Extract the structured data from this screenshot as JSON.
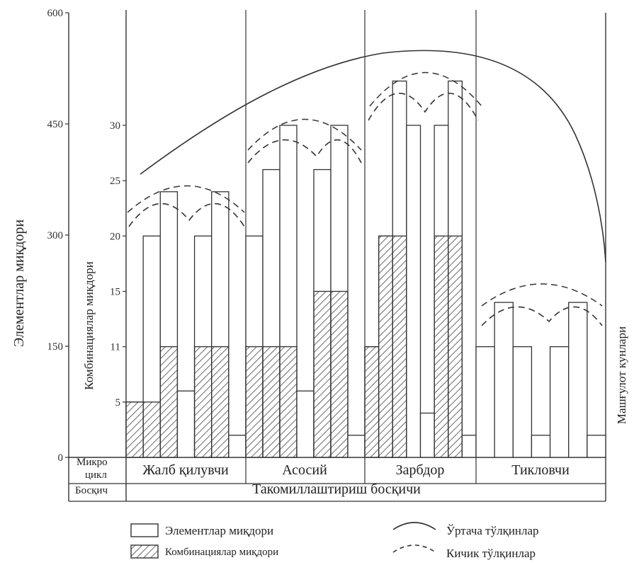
{
  "chart_data": {
    "type": "bar",
    "left_axis": {
      "label": "Элементлар миқдори",
      "ticks": [
        "600",
        "450",
        "300",
        "150",
        "0"
      ],
      "ylim": [
        0,
        600
      ]
    },
    "inner_axis": {
      "label": "Комбинациялар миқдори",
      "ticks": [
        "30",
        "25",
        "20",
        "15",
        "1​1",
        "5"
      ],
      "ylim": [
        0,
        30
      ]
    },
    "right_axis": {
      "label": "Машғулот кунлари"
    },
    "row_labels": {
      "microcycle": [
        "Микро",
        "цикл"
      ],
      "stage": "Босқич"
    },
    "stage_name": "Такомиллаштириш босқичи",
    "phases": [
      {
        "name": "Жалб қилувчи",
        "elements": [
          5,
          20,
          24,
          6,
          20,
          24,
          2
        ],
        "combinations": [
          5,
          5,
          10,
          0,
          10,
          10,
          0
        ]
      },
      {
        "name": "Асосий",
        "elements": [
          20,
          26,
          30,
          6,
          26,
          30,
          2
        ],
        "combinations": [
          10,
          10,
          10,
          0,
          15,
          15,
          0
        ]
      },
      {
        "name": "Зарбдор",
        "elements": [
          10,
          20,
          34,
          30,
          4,
          30,
          34,
          2
        ],
        "combinations": [
          10,
          20,
          20,
          0,
          0,
          20,
          20,
          0
        ]
      },
      {
        "name": "Тикловчи",
        "elements": [
          10,
          14,
          10,
          2,
          10,
          14,
          2
        ],
        "combinations": [
          0,
          0,
          0,
          0,
          0,
          0,
          0
        ]
      }
    ],
    "legend": [
      {
        "label": "Элементлар миқдори",
        "kind": "bar-plain"
      },
      {
        "label": "Комбинациялар миқдори",
        "kind": "bar-hatched"
      },
      {
        "label": "Ўртача тўлқинлар",
        "kind": "solid-arc"
      },
      {
        "label": "Кичик тўлқинлар",
        "kind": "dashed-arc"
      }
    ],
    "grid": false
  }
}
